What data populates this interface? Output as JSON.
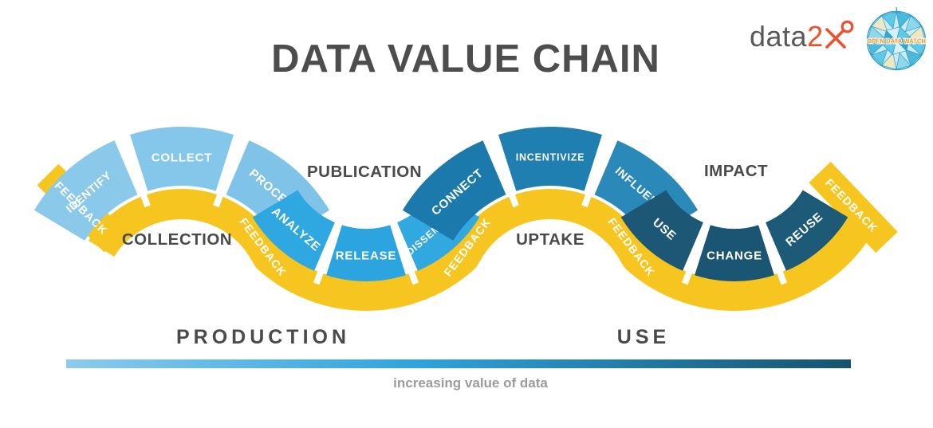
{
  "title": "DATA VALUE CHAIN",
  "logos": {
    "data2x": {
      "text_gray": "data",
      "text_2": "2",
      "icon": "female-x-symbol",
      "orange": "#F0502D",
      "gray": "#58595B"
    },
    "odw": {
      "text": "OPEN DATA WATCH",
      "text_color": "#F7931E",
      "style": "stained-glass-globe"
    }
  },
  "chain": {
    "ribbon_color": "#F7C51F",
    "feedback_label": "FEEDBACK",
    "feedback_text_color": "#FFFFFF",
    "stage_text_color": "#4A4A4A",
    "groups": [
      {
        "stage": "COLLECTION",
        "position": "crest",
        "segments": [
          {
            "label": "IDENTIFY",
            "color": "#8BC9EA"
          },
          {
            "label": "COLLECT",
            "color": "#85C7EA"
          },
          {
            "label": "PROCESS",
            "color": "#7FC3E8"
          }
        ]
      },
      {
        "stage": "PUBLICATION",
        "position": "trough",
        "segments": [
          {
            "label": "ANALYZE",
            "color": "#2FA7E0"
          },
          {
            "label": "RELEASE",
            "color": "#2CA4DF"
          },
          {
            "label": "DISSEMINATE",
            "color": "#31A8E0"
          }
        ]
      },
      {
        "stage": "UPTAKE",
        "position": "crest",
        "segments": [
          {
            "label": "CONNECT",
            "color": "#1B79AB"
          },
          {
            "label": "INCENTIVIZE",
            "color": "#1F7FB0"
          },
          {
            "label": "INFLUENCE",
            "color": "#2B89BA"
          }
        ]
      },
      {
        "stage": "IMPACT",
        "position": "trough",
        "segments": [
          {
            "label": "USE",
            "color": "#1C5876"
          },
          {
            "label": "CHANGE",
            "color": "#1A5674"
          },
          {
            "label": "REUSE",
            "color": "#1D5A78"
          }
        ]
      }
    ]
  },
  "footer": {
    "left_label": "PRODUCTION",
    "right_label": "USE",
    "caption": "increasing value of data",
    "gradient": [
      "#8BCBEE",
      "#2EA3DC",
      "#175270"
    ]
  }
}
